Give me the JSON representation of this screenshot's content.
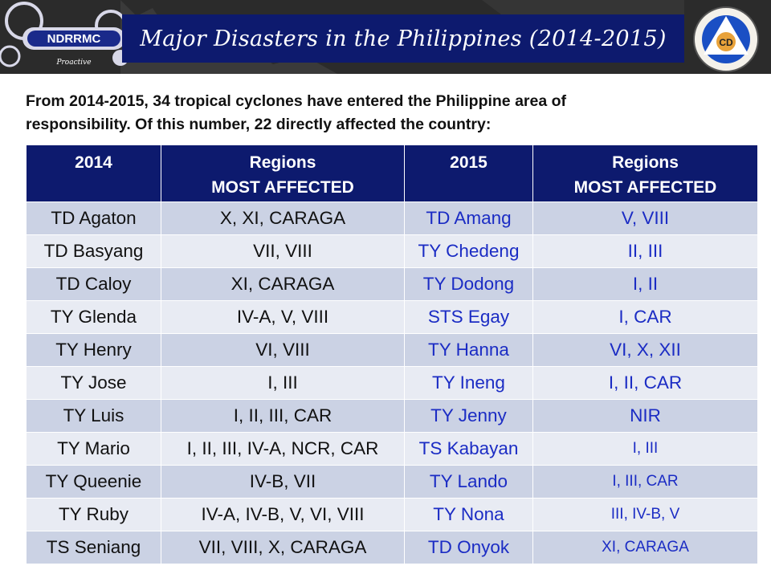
{
  "header": {
    "title": "Major Disasters in the Philippines (2014-2015)",
    "left_logo_text": "NDRRMC",
    "left_logo_tagline": "Proactive",
    "right_logo_text": "CD"
  },
  "intro": {
    "line1": "From 2014-2015, 34 tropical cyclones have entered the Philippine area of",
    "line2": "responsibility. Of this number, 22 directly affected the country:"
  },
  "table": {
    "headers": [
      {
        "line1": "2014",
        "line2": ""
      },
      {
        "line1": "Regions",
        "line2": "MOST AFFECTED"
      },
      {
        "line1": "2015",
        "line2": ""
      },
      {
        "line1": "Regions",
        "line2": "MOST AFFECTED"
      }
    ],
    "rows": [
      {
        "c2014": "TD Agaton",
        "r2014": "X, XI, CARAGA",
        "c2015": "TD Amang",
        "r2015": "V, VIII"
      },
      {
        "c2014": "TD Basyang",
        "r2014": "VII, VIII",
        "c2015": "TY Chedeng",
        "r2015": "II, III"
      },
      {
        "c2014": "TD Caloy",
        "r2014": "XI, CARAGA",
        "c2015": "TY Dodong",
        "r2015": "I, II"
      },
      {
        "c2014": "TY Glenda",
        "r2014": "IV-A, V, VIII",
        "c2015": "STS Egay",
        "r2015": "I, CAR"
      },
      {
        "c2014": "TY Henry",
        "r2014": "VI, VIII",
        "c2015": "TY Hanna",
        "r2015": "VI, X, XII"
      },
      {
        "c2014": "TY Jose",
        "r2014": "I, III",
        "c2015": "TY Ineng",
        "r2015": "I, II, CAR"
      },
      {
        "c2014": "TY Luis",
        "r2014": "I, II, III, CAR",
        "c2015": "TY Jenny",
        "r2015": "NIR"
      },
      {
        "c2014": "TY Mario",
        "r2014": "I, II, III, IV-A, NCR, CAR",
        "c2015": "TS Kabayan",
        "r2015": "I, III"
      },
      {
        "c2014": "TY Queenie",
        "r2014": "IV-B, VII",
        "c2015": "TY Lando",
        "r2015": "I, III, CAR"
      },
      {
        "c2014": "TY Ruby",
        "r2014": "IV-A, IV-B, V, VI, VIII",
        "c2015": "TY Nona",
        "r2015": "III, IV-B, V"
      },
      {
        "c2014": "TS Seniang",
        "r2014": "VII, VIII, X, CARAGA",
        "c2015": "TD Onyok",
        "r2015": "XI, CARAGA"
      }
    ]
  }
}
